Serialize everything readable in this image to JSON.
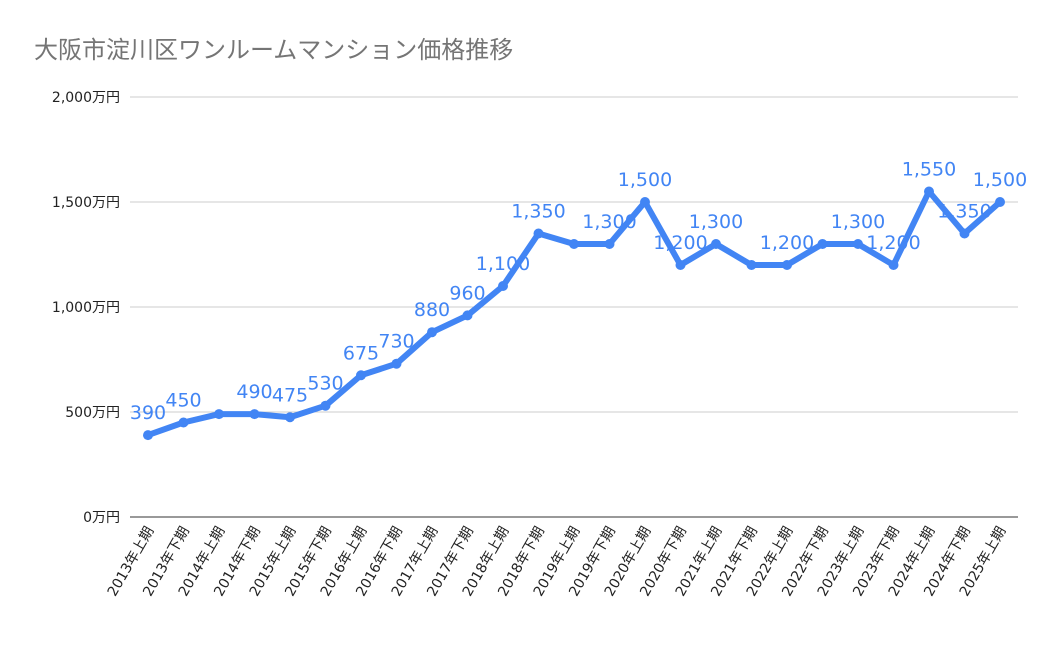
{
  "chart_data": {
    "type": "line",
    "title": "大阪市淀川区ワンルームマンション価格推移",
    "xlabel": "",
    "ylabel": "",
    "ylim": [
      0,
      2000
    ],
    "yticks": [
      0,
      500,
      1000,
      1500,
      2000
    ],
    "ytick_labels": [
      "0万円",
      "500万円",
      "1,000万円",
      "1,500万円",
      "2,000万円"
    ],
    "grid": true,
    "legend": "none",
    "color": "#4285f4",
    "categories": [
      "2013年上期",
      "2013年下期",
      "2014年上期",
      "2014年下期",
      "2015年上期",
      "2015年下期",
      "2016年上期",
      "2016年下期",
      "2017年上期",
      "2017年下期",
      "2018年上期",
      "2018年下期",
      "2019年上期",
      "2019年下期",
      "2020年上期",
      "2020年下期",
      "2021年上期",
      "2021年下期",
      "2022年上期",
      "2022年下期",
      "2023年上期",
      "2023年下期",
      "2024年上期",
      "2024年下期",
      "2025年上期"
    ],
    "values": [
      390,
      450,
      490,
      490,
      475,
      530,
      675,
      730,
      880,
      960,
      1100,
      1350,
      1300,
      1300,
      1500,
      1200,
      1300,
      1200,
      1200,
      1300,
      1300,
      1200,
      1550,
      1350,
      1500
    ],
    "data_labels": [
      "390",
      "450",
      null,
      "490",
      "475",
      "530",
      "675",
      "730",
      "880",
      "960",
      "1,100",
      "1,350",
      null,
      "1,300",
      "1,500",
      "1,200",
      "1,300",
      null,
      "1,200",
      null,
      "1,300",
      "1,200",
      "1,550",
      "1,350",
      "1,500"
    ]
  }
}
